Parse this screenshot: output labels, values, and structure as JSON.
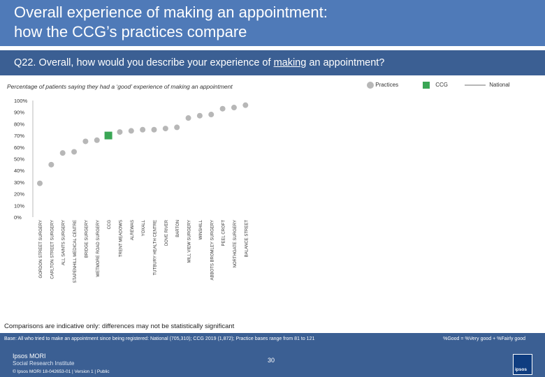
{
  "header": {
    "title_line1": "Overall experience of making an appointment:",
    "title_line2": "how the CCG’s practices compare"
  },
  "question": {
    "prefix": "Q22. Overall, how would you describe your experience of ",
    "underlined": "making",
    "suffix": " an appointment?"
  },
  "subtitle": "Percentage of patients saying they had a ‘good’ experience of making an appointment",
  "legend": {
    "practices": "Practices",
    "ccg": "CCG",
    "national": "National"
  },
  "colors": {
    "practice": "#b7b7b7",
    "ccg": "#3aa655",
    "national": "#b7b7b7",
    "header": "#4f7ab8",
    "band": "#3b5f93"
  },
  "chart_data": {
    "type": "scatter",
    "title": "Percentage of patients saying they had a ‘good’ experience of making an appointment",
    "ylim": [
      0,
      100
    ],
    "ytick_labels": [
      "0%",
      "10%",
      "20%",
      "30%",
      "40%",
      "50%",
      "60%",
      "70%",
      "80%",
      "90%",
      "100%"
    ],
    "categories": [
      "GORDON STREET SURGERY",
      "CARLTON STREET SURGERY",
      "ALL SAINTS SURGERY",
      "STAPENHILL MEDICAL CENTRE",
      "BRIDGE SURGERY",
      "WETMORE ROAD SURGERY",
      "CCG",
      "TRENT MEADOWS",
      "ALREWAS",
      "YOXALL",
      "TUTBURY HEALTH CENTRE",
      "DOVE RIVER",
      "BARTON",
      "MILL VIEW SURGERY",
      "WINSHILL",
      "ABBOTS BROMLEY SURGERY",
      "PEEL CROFT",
      "NORTHGATE SURGERY",
      "BALANCE STREET"
    ],
    "values": [
      29,
      45,
      55,
      56,
      65,
      66,
      70,
      73,
      74,
      75,
      75,
      76,
      77,
      85,
      87,
      88,
      93,
      94,
      96
    ],
    "ccg_category": "CCG",
    "national_value": null
  },
  "note": "Comparisons are indicative only: differences may not be statistically significant",
  "footer": {
    "base": "Base: All who tried to make an appointment since being registered: National (705,310); CCG 2019 (1,872); Practice bases range from 81 to 121",
    "good_def": "%Good = %Very good + %Fairly good",
    "brand1": "Ipsos MORI",
    "brand2": "Social Research Institute",
    "copyright": "© Ipsos MORI     18-042653-01 | Version 1 | Public",
    "page": "30",
    "logo": "ipsos"
  }
}
